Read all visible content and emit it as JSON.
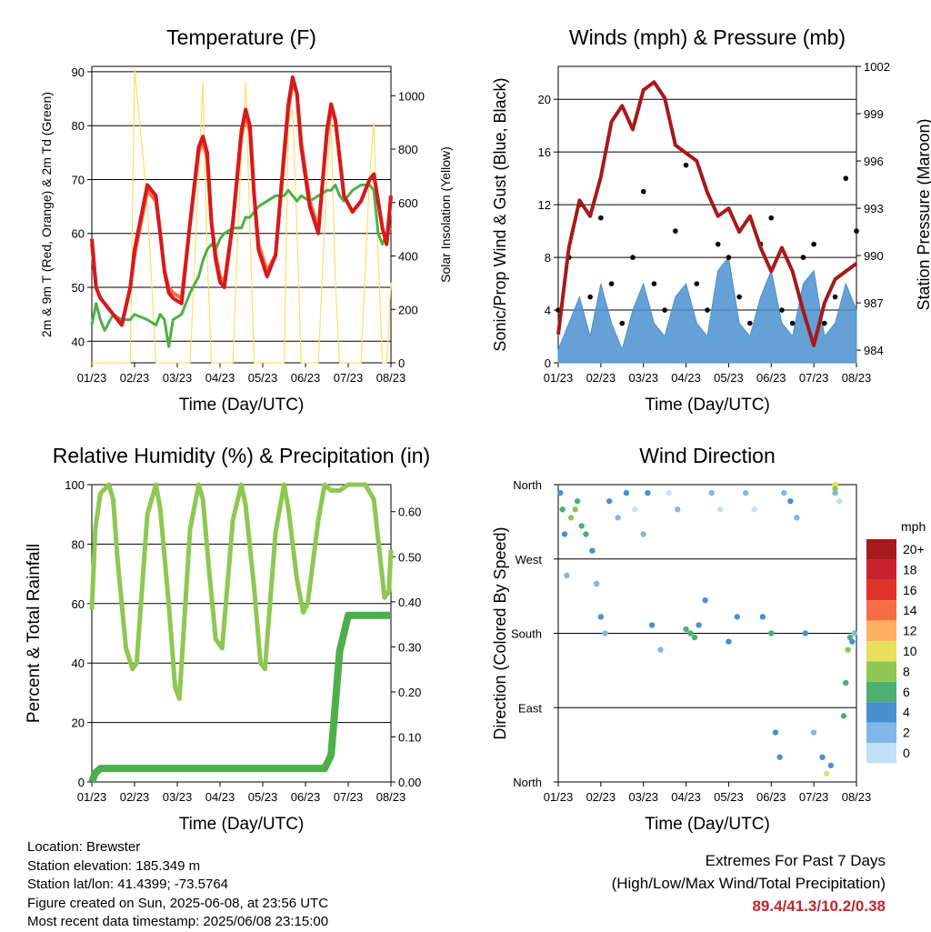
{
  "chart_data": [
    {
      "type": "line",
      "title": "Temperature (F)",
      "xlabel": "Time (Day/UTC)",
      "ylabel": "2m & 9m T (Red, Orange) & 2m Td (Green)",
      "y2label": "Solar Insolation (Yellow)",
      "ylim": [
        36,
        91
      ],
      "yticks": [
        40,
        50,
        60,
        70,
        80,
        90
      ],
      "y2lim": [
        0,
        1110
      ],
      "y2ticks": [
        0,
        200,
        400,
        600,
        800,
        1000
      ],
      "xticks": [
        "01/23",
        "02/23",
        "03/23",
        "04/23",
        "05/23",
        "06/23",
        "07/23",
        "08/23"
      ],
      "x": [
        0,
        0.1,
        0.2,
        0.3,
        0.5,
        0.7,
        0.9,
        1.0,
        1.3,
        1.5,
        1.6,
        1.7,
        1.8,
        1.9,
        2.1,
        2.3,
        2.5,
        2.6,
        2.7,
        2.8,
        2.9,
        3.0,
        3.1,
        3.3,
        3.5,
        3.6,
        3.7,
        3.8,
        3.9,
        4.1,
        4.3,
        4.5,
        4.6,
        4.7,
        4.8,
        4.9,
        5.1,
        5.3,
        5.5,
        5.6,
        5.7,
        5.8,
        5.9,
        6.1,
        6.3,
        6.5,
        6.6,
        6.7,
        6.8,
        6.9,
        7.0
      ],
      "series": [
        {
          "name": "2m T",
          "color": "#d7191c",
          "values": [
            59,
            50,
            48,
            47,
            45,
            43,
            50,
            57,
            69,
            67,
            60,
            53,
            49,
            48,
            47,
            62,
            76,
            78,
            75,
            62,
            55,
            51,
            50,
            62,
            79,
            83,
            80,
            67,
            57,
            52,
            56,
            75,
            84,
            89,
            86,
            76,
            65,
            60,
            79,
            84,
            81,
            74,
            67,
            64,
            66,
            70,
            71,
            66,
            61,
            58,
            67
          ]
        },
        {
          "name": "9m T",
          "color": "#f46d43",
          "values": [
            58,
            50,
            48,
            47,
            45,
            43,
            50,
            56,
            68,
            66,
            60,
            53,
            50,
            49,
            48,
            62,
            75,
            77,
            74,
            62,
            56,
            52,
            51,
            62,
            78,
            82,
            79,
            67,
            58,
            53,
            56,
            74,
            83,
            88,
            86,
            77,
            66,
            61,
            78,
            83,
            81,
            74,
            67,
            64,
            66,
            70,
            71,
            66,
            61,
            58,
            67
          ]
        },
        {
          "name": "2m Td",
          "color": "#4daf4a",
          "values": [
            43,
            47,
            44,
            42,
            45,
            44,
            44,
            45,
            44,
            43,
            45,
            44,
            39,
            44,
            45,
            49,
            52,
            55,
            57,
            58,
            57,
            59,
            60,
            61,
            61,
            63,
            63,
            64,
            65,
            66,
            67,
            67,
            68,
            67,
            66,
            67,
            66,
            67,
            68,
            68,
            69,
            67,
            66,
            68,
            69,
            69,
            68,
            60,
            58,
            60,
            61
          ]
        },
        {
          "name": "Solar Insolation",
          "axis": "y2",
          "color": "#ffe066",
          "values": [
            0,
            0,
            0,
            0,
            0,
            0,
            0,
            1100,
            600,
            0,
            0,
            0,
            0,
            0,
            0,
            0,
            700,
            1050,
            400,
            0,
            0,
            0,
            0,
            0,
            800,
            1050,
            500,
            0,
            0,
            0,
            0,
            0,
            900,
            950,
            500,
            0,
            0,
            0,
            700,
            900,
            300,
            0,
            0,
            0,
            0,
            700,
            900,
            400,
            0,
            0,
            300
          ]
        }
      ]
    },
    {
      "type": "scatter",
      "title": "Winds (mph) & Pressure (mb)",
      "xlabel": "Time (Day/UTC)",
      "ylabel": "Sonic/Prop Wind & Gust (Blue, Black)",
      "y2label": "Station Pressure (Maroon)",
      "ylim": [
        0,
        22.5
      ],
      "yticks": [
        0,
        4,
        8,
        12,
        16,
        20
      ],
      "y2lim": [
        983.2,
        1002
      ],
      "y2ticks": [
        984,
        987,
        990,
        993,
        996,
        999,
        1002
      ],
      "xticks": [
        "01/23",
        "02/23",
        "03/23",
        "04/23",
        "05/23",
        "06/23",
        "07/23",
        "08/23"
      ],
      "x": [
        0,
        0.25,
        0.5,
        0.75,
        1.0,
        1.25,
        1.5,
        1.75,
        2.0,
        2.25,
        2.5,
        2.75,
        3.0,
        3.25,
        3.5,
        3.75,
        4.0,
        4.25,
        4.5,
        4.75,
        5.0,
        5.25,
        5.5,
        5.75,
        6.0,
        6.25,
        6.5,
        6.75,
        7.0
      ],
      "series": [
        {
          "name": "Wind",
          "color": "#4a90d0",
          "values": [
            1,
            3,
            5,
            2,
            6,
            3,
            1,
            4,
            6,
            3,
            2,
            5,
            6,
            3,
            2,
            7,
            8,
            3,
            2,
            5,
            7,
            3,
            2,
            6,
            7,
            2,
            3,
            6,
            4
          ]
        },
        {
          "name": "Gust",
          "color": "#000000",
          "values": [
            4,
            8,
            12,
            5,
            11,
            6,
            3,
            8,
            13,
            6,
            4,
            10,
            15,
            6,
            4,
            9,
            8,
            5,
            3,
            9,
            11,
            4,
            3,
            8,
            9,
            3,
            5,
            14,
            10
          ]
        },
        {
          "name": "Station Pressure",
          "axis": "y2",
          "color": "#a6191c",
          "values": [
            985.0,
            990.5,
            993.5,
            992.5,
            995.0,
            998.5,
            999.5,
            998.0,
            1000.5,
            1001.0,
            1000.0,
            997.0,
            996.5,
            996.0,
            994.0,
            992.5,
            993.0,
            991.5,
            992.5,
            990.5,
            989.0,
            990.5,
            989.0,
            986.5,
            984.3,
            987.0,
            988.5,
            989.0,
            989.5
          ]
        }
      ]
    },
    {
      "type": "line",
      "title": "Relative Humidity (%) & Precipitation (in)",
      "xlabel": "Time (Day/UTC)",
      "ylabel": "Percent & Total Rainfall",
      "ylim": [
        0,
        100
      ],
      "yticks": [
        0,
        20,
        40,
        60,
        80,
        100
      ],
      "y2lim": [
        0,
        0.66
      ],
      "y2ticks": [
        "0.00",
        "0.10",
        "0.20",
        "0.30",
        "0.40",
        "0.50",
        "0.60"
      ],
      "xticks": [
        "01/23",
        "02/23",
        "03/23",
        "04/23",
        "05/23",
        "06/23",
        "07/23",
        "08/23"
      ],
      "x": [
        0,
        0.08,
        0.2,
        0.4,
        0.5,
        0.6,
        0.8,
        0.95,
        1.05,
        1.3,
        1.5,
        1.6,
        1.8,
        1.95,
        2.05,
        2.3,
        2.5,
        2.6,
        2.75,
        2.9,
        3.05,
        3.3,
        3.5,
        3.6,
        3.8,
        3.95,
        4.05,
        4.3,
        4.5,
        4.6,
        4.8,
        4.95,
        5.05,
        5.3,
        5.45,
        5.6,
        5.8,
        6.0,
        6.2,
        6.4,
        6.6,
        6.75,
        6.85,
        6.95,
        7.0
      ],
      "series": [
        {
          "name": "Relative Humidity",
          "color": "#8fc752",
          "values": [
            58,
            85,
            97,
            100,
            95,
            75,
            45,
            38,
            40,
            90,
            100,
            92,
            60,
            32,
            28,
            85,
            100,
            95,
            70,
            48,
            45,
            88,
            100,
            93,
            65,
            40,
            38,
            84,
            100,
            92,
            68,
            57,
            60,
            88,
            100,
            98,
            98,
            100,
            100,
            100,
            95,
            75,
            62,
            64,
            78
          ]
        },
        {
          "name": "Total Rainfall",
          "axis": "y2",
          "color": "#4daf4a",
          "values": [
            0,
            0.02,
            0.03,
            0.03,
            0.03,
            0.03,
            0.03,
            0.03,
            0.03,
            0.03,
            0.03,
            0.03,
            0.03,
            0.03,
            0.03,
            0.03,
            0.03,
            0.03,
            0.03,
            0.03,
            0.03,
            0.03,
            0.03,
            0.03,
            0.03,
            0.03,
            0.03,
            0.03,
            0.03,
            0.03,
            0.03,
            0.03,
            0.03,
            0.03,
            0.03,
            0.06,
            0.29,
            0.37,
            0.37,
            0.37,
            0.37,
            0.37,
            0.37,
            0.37,
            0.37
          ]
        }
      ]
    },
    {
      "type": "scatter",
      "title": "Wind Direction",
      "xlabel": "Time (Day/UTC)",
      "ylabel": "Direction (Colored By Speed)",
      "ylim": [
        0,
        360
      ],
      "yticklabels": [
        "North",
        "East",
        "South",
        "West",
        "North"
      ],
      "xticks": [
        "01/23",
        "02/23",
        "03/23",
        "04/23",
        "05/23",
        "06/23",
        "07/23",
        "08/23"
      ],
      "colorbar_title": "mph",
      "colorbar_labels": [
        "20+",
        "18",
        "16",
        "14",
        "12",
        "10",
        "8",
        "6",
        "4",
        "2",
        "0"
      ],
      "colorbar_colors": [
        "#a6191c",
        "#c8232c",
        "#e0332a",
        "#f46d43",
        "#fdae61",
        "#e8e05a",
        "#8fc752",
        "#4daf72",
        "#4a90d0",
        "#7fb8e8",
        "#bfe2f7"
      ],
      "points": [
        {
          "x": 0.05,
          "y": 350,
          "s": 4
        },
        {
          "x": 0.1,
          "y": 330,
          "s": 6
        },
        {
          "x": 0.15,
          "y": 300,
          "s": 4
        },
        {
          "x": 0.2,
          "y": 250,
          "s": 2
        },
        {
          "x": 0.3,
          "y": 320,
          "s": 8
        },
        {
          "x": 0.45,
          "y": 340,
          "s": 6
        },
        {
          "x": 0.55,
          "y": 310,
          "s": 7
        },
        {
          "x": 0.65,
          "y": 300,
          "s": 6
        },
        {
          "x": 0.8,
          "y": 280,
          "s": 4
        },
        {
          "x": 0.9,
          "y": 240,
          "s": 2
        },
        {
          "x": 1.0,
          "y": 200,
          "s": 4
        },
        {
          "x": 1.1,
          "y": 180,
          "s": 2
        },
        {
          "x": 1.2,
          "y": 340,
          "s": 4
        },
        {
          "x": 1.4,
          "y": 320,
          "s": 2
        },
        {
          "x": 1.6,
          "y": 350,
          "s": 4
        },
        {
          "x": 1.8,
          "y": 330,
          "s": 0
        },
        {
          "x": 2.0,
          "y": 300,
          "s": 2
        },
        {
          "x": 2.1,
          "y": 350,
          "s": 4
        },
        {
          "x": 2.2,
          "y": 190,
          "s": 4
        },
        {
          "x": 2.4,
          "y": 160,
          "s": 2
        },
        {
          "x": 2.6,
          "y": 350,
          "s": 0
        },
        {
          "x": 2.8,
          "y": 330,
          "s": 2
        },
        {
          "x": 3.0,
          "y": 185,
          "s": 6
        },
        {
          "x": 3.1,
          "y": 180,
          "s": 7
        },
        {
          "x": 3.2,
          "y": 175,
          "s": 6
        },
        {
          "x": 3.3,
          "y": 190,
          "s": 4
        },
        {
          "x": 3.45,
          "y": 220,
          "s": 4
        },
        {
          "x": 3.6,
          "y": 350,
          "s": 2
        },
        {
          "x": 3.8,
          "y": 330,
          "s": 0
        },
        {
          "x": 4.0,
          "y": 170,
          "s": 4
        },
        {
          "x": 4.2,
          "y": 200,
          "s": 4
        },
        {
          "x": 4.4,
          "y": 350,
          "s": 2
        },
        {
          "x": 4.6,
          "y": 330,
          "s": 0
        },
        {
          "x": 4.8,
          "y": 200,
          "s": 4
        },
        {
          "x": 5.0,
          "y": 180,
          "s": 6
        },
        {
          "x": 5.1,
          "y": 60,
          "s": 4
        },
        {
          "x": 5.2,
          "y": 30,
          "s": 4
        },
        {
          "x": 5.3,
          "y": 350,
          "s": 2
        },
        {
          "x": 5.45,
          "y": 340,
          "s": 4
        },
        {
          "x": 5.6,
          "y": 320,
          "s": 2
        },
        {
          "x": 5.8,
          "y": 180,
          "s": 4
        },
        {
          "x": 6.0,
          "y": 60,
          "s": 2
        },
        {
          "x": 6.2,
          "y": 30,
          "s": 4
        },
        {
          "x": 6.3,
          "y": 10,
          "s": 10
        },
        {
          "x": 6.4,
          "y": 20,
          "s": 4
        },
        {
          "x": 6.5,
          "y": 350,
          "s": 2
        },
        {
          "x": 6.6,
          "y": 340,
          "s": 0
        },
        {
          "x": 6.7,
          "y": 80,
          "s": 6
        },
        {
          "x": 6.75,
          "y": 120,
          "s": 6
        },
        {
          "x": 6.8,
          "y": 160,
          "s": 8
        },
        {
          "x": 6.85,
          "y": 175,
          "s": 6
        },
        {
          "x": 6.9,
          "y": 170,
          "s": 4
        },
        {
          "x": 6.95,
          "y": 180,
          "s": 2
        },
        {
          "x": 6.5,
          "y": 360,
          "s": 10
        },
        {
          "x": 6.5,
          "y": 355,
          "s": 8
        },
        {
          "x": 0.4,
          "y": 330,
          "s": 8
        }
      ]
    }
  ],
  "info": {
    "location": "Location: Brewster",
    "elevation": "Station elevation: 185.349 m",
    "latlon": "Station lat/lon: 41.4399; -73.5764",
    "created": "Figure created on Sun, 2025-06-08, at 23:56 UTC",
    "timestamp": "Most recent data timestamp: 2025/06/08 23:15:00"
  },
  "extremes": {
    "line1": "Extremes For Past 7 Days",
    "line2": "(High/Low/Max Wind/Total Precipitation)",
    "values": "89.4/41.3/10.2/0.38"
  }
}
